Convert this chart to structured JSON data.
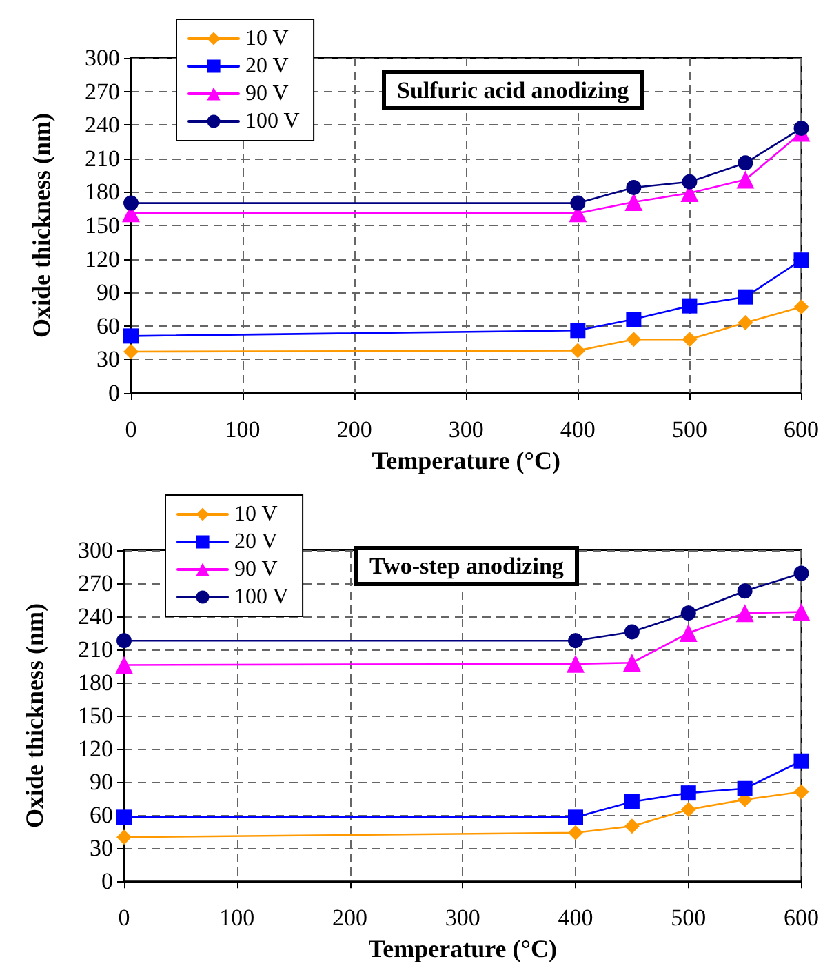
{
  "chart_data": [
    {
      "type": "line",
      "title": "Sulfuric acid anodizing",
      "xlabel": "Temperature (°C)",
      "ylabel": "Oxide thickness (nm)",
      "x": [
        0,
        400,
        450,
        500,
        550,
        600
      ],
      "series": [
        {
          "name": "10 V",
          "color": "#ff9900",
          "marker": "diamond",
          "values": [
            37,
            38,
            48,
            48,
            63,
            77
          ]
        },
        {
          "name": "20 V",
          "color": "#0000ff",
          "marker": "square",
          "values": [
            51,
            56,
            66,
            78,
            86,
            119
          ]
        },
        {
          "name": "90 V",
          "color": "#ff00ff",
          "marker": "triangle",
          "values": [
            161,
            161,
            171,
            179,
            191,
            233
          ]
        },
        {
          "name": "100 V",
          "color": "#000080",
          "marker": "circle",
          "values": [
            170,
            170,
            184,
            189,
            206,
            237
          ]
        }
      ],
      "xlim": [
        0,
        600
      ],
      "xticks": [
        0,
        100,
        200,
        300,
        400,
        500,
        600
      ],
      "ylim": [
        0,
        300
      ],
      "yticks": [
        0,
        30,
        60,
        90,
        120,
        150,
        180,
        210,
        240,
        270,
        300
      ],
      "grid": true,
      "legend": "top left",
      "line_style": "solid"
    },
    {
      "type": "line",
      "title": "Two-step anodizing",
      "xlabel": "Temperature (°C)",
      "ylabel": "Oxide thickness (nm)",
      "x": [
        0,
        400,
        450,
        500,
        550,
        600
      ],
      "series": [
        {
          "name": "10 V",
          "color": "#ff9900",
          "marker": "diamond",
          "values": [
            40,
            44,
            50,
            65,
            74,
            81
          ]
        },
        {
          "name": "20 V",
          "color": "#0000ff",
          "marker": "square",
          "values": [
            58,
            58,
            72,
            80,
            84,
            109
          ]
        },
        {
          "name": "90 V",
          "color": "#ff00ff",
          "marker": "triangle",
          "values": [
            196,
            197,
            198,
            225,
            243,
            244
          ]
        },
        {
          "name": "100 V",
          "color": "#000080",
          "marker": "circle",
          "values": [
            218,
            218,
            226,
            243,
            263,
            279
          ]
        }
      ],
      "xlim": [
        0,
        600
      ],
      "xticks": [
        0,
        100,
        200,
        300,
        400,
        500,
        600
      ],
      "ylim": [
        0,
        300
      ],
      "yticks": [
        0,
        30,
        60,
        90,
        120,
        150,
        180,
        210,
        240,
        270,
        300
      ],
      "grid": true,
      "legend": "top left",
      "line_style": "solid"
    }
  ]
}
